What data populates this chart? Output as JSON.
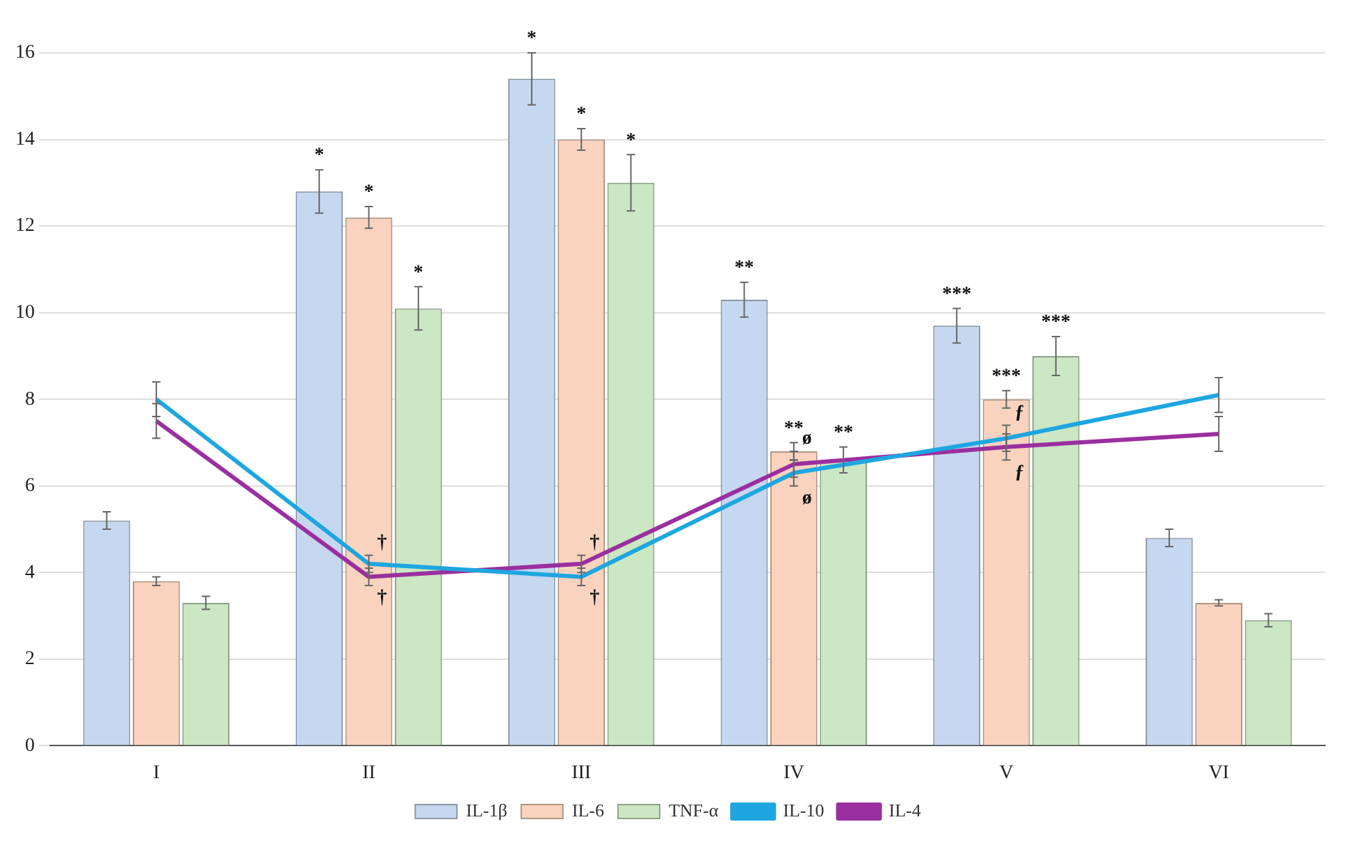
{
  "chart_data": {
    "type": "bar",
    "categories": [
      "I",
      "II",
      "III",
      "IV",
      "V",
      "VI"
    ],
    "ylim": [
      0,
      16
    ],
    "yticks": [
      0,
      2,
      4,
      6,
      8,
      10,
      12,
      14,
      16
    ],
    "grid": "y",
    "legend": "bottom",
    "marker": "none",
    "line_style": "solid",
    "series": [
      {
        "name": "IL-1β",
        "color": "#c5d8ef",
        "values": [
          5.2,
          12.8,
          15.4,
          10.3,
          9.7,
          4.8
        ],
        "errors": [
          0.2,
          0.5,
          0.6,
          0.4,
          0.4,
          0.2
        ],
        "value_labels": [
          null,
          "*",
          "*",
          "**",
          "***",
          null
        ]
      },
      {
        "name": "IL-6",
        "color": "#f9d3bd",
        "values": [
          3.8,
          12.2,
          14.0,
          6.8,
          8.0,
          3.3
        ],
        "errors": [
          0.1,
          0.25,
          0.25,
          0.2,
          0.2,
          0.07
        ],
        "value_labels": [
          null,
          "*",
          "*",
          "**",
          "***",
          null
        ]
      },
      {
        "name": "TNF-α",
        "color": "#cbe7c3",
        "values": [
          3.3,
          10.1,
          13.0,
          6.6,
          9.0,
          2.9
        ],
        "errors": [
          0.15,
          0.5,
          0.65,
          0.3,
          0.45,
          0.15
        ],
        "value_labels": [
          null,
          "*",
          "*",
          "**",
          "***",
          null
        ]
      },
      {
        "name": "IL-10",
        "type": "line",
        "color": "#1ea6e0",
        "values": [
          8.0,
          4.2,
          3.9,
          6.3,
          7.1,
          8.1
        ],
        "errors": [
          0.4,
          0.2,
          0.2,
          0.3,
          0.3,
          0.4
        ],
        "value_labels": [
          null,
          "†",
          "†",
          "ø",
          "ƒ",
          null
        ]
      },
      {
        "name": "IL-4",
        "type": "line",
        "color": "#9a2fa0",
        "values": [
          7.5,
          3.9,
          4.2,
          6.5,
          6.9,
          7.2
        ],
        "errors": [
          0.4,
          0.2,
          0.2,
          0.3,
          0.3,
          0.4
        ],
        "value_labels": [
          null,
          "†",
          "†",
          "ø",
          "ƒ",
          null
        ]
      }
    ]
  }
}
